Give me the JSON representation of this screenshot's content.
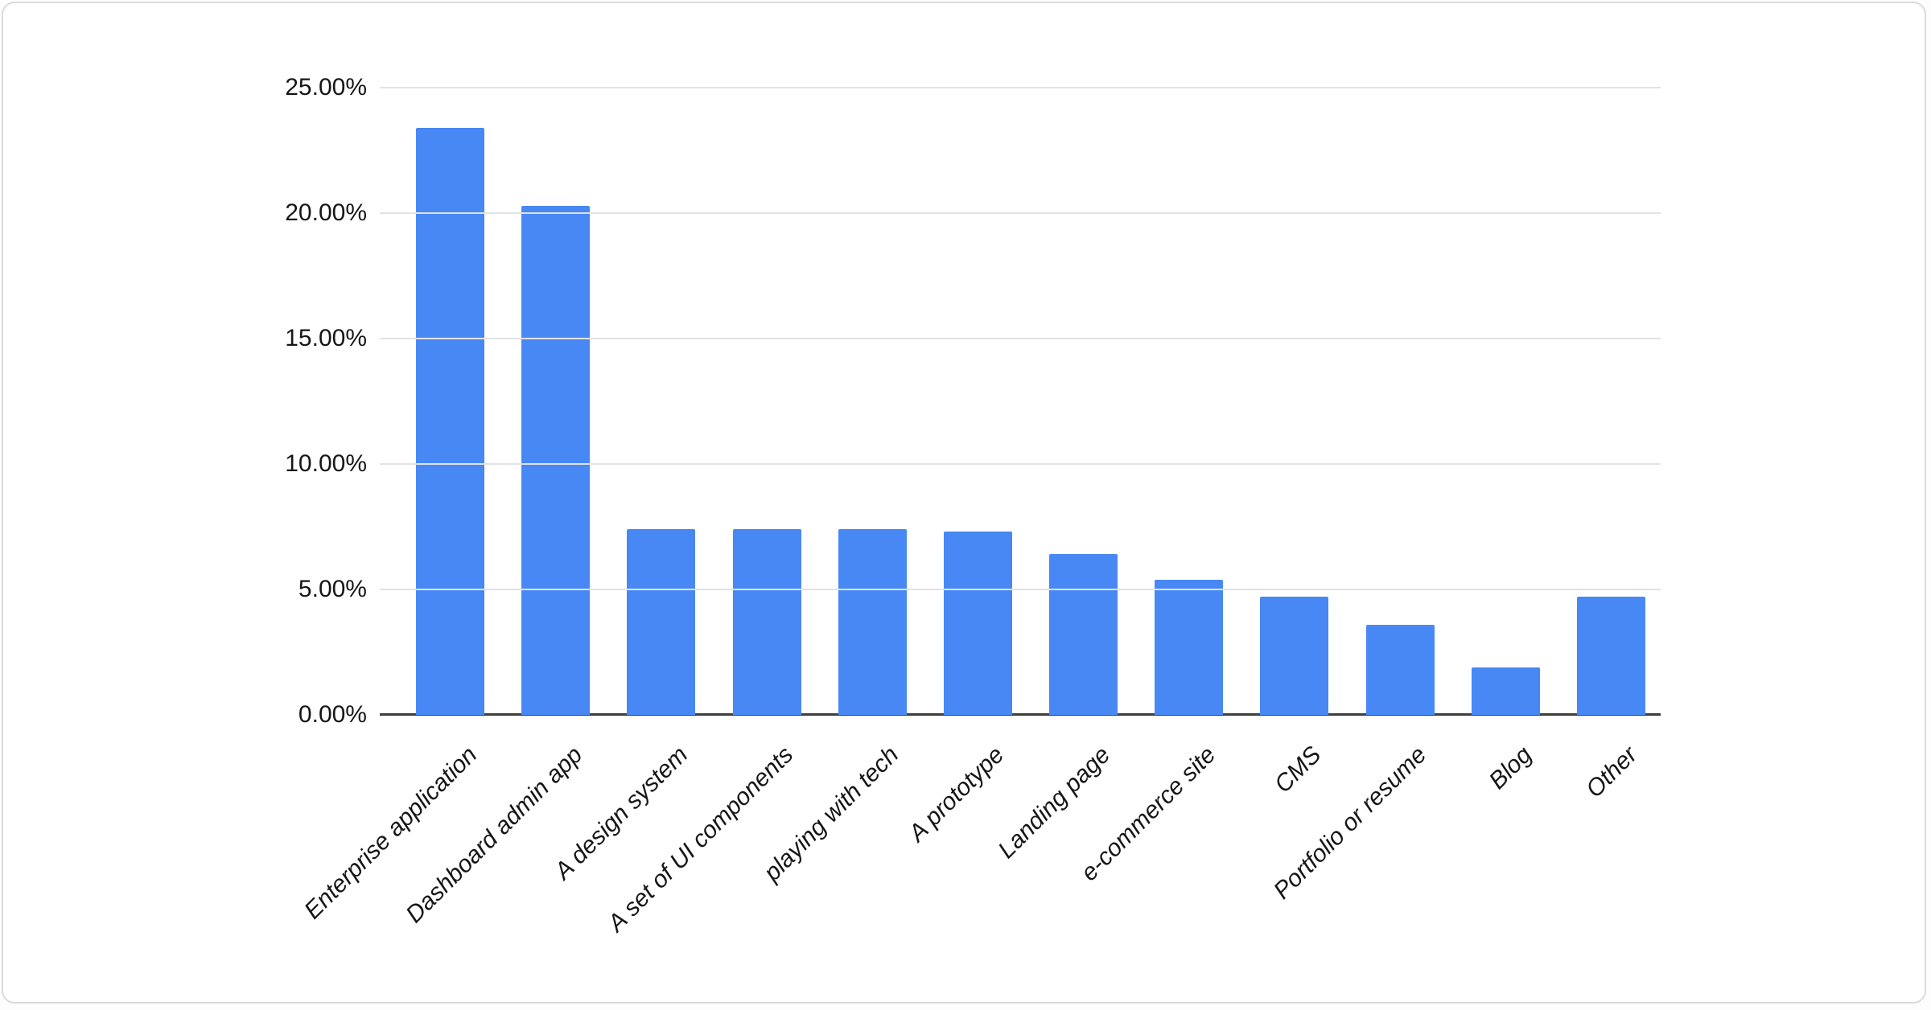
{
  "chart_data": {
    "type": "bar",
    "title": "",
    "xlabel": "",
    "ylabel": "",
    "legend": "none",
    "grid": true,
    "ylim": [
      0,
      25
    ],
    "unit": "%",
    "categories": [
      "Enterprise application",
      "Dashboard admin app",
      "A design system",
      "A set of UI components",
      "playing with tech",
      "A prototype",
      "Landing page",
      "e-commerce site",
      "CMS",
      "Portfolio or resume",
      "Blog",
      "Other"
    ],
    "values": [
      23.4,
      20.3,
      7.4,
      7.4,
      7.4,
      7.3,
      6.4,
      5.4,
      4.7,
      3.6,
      1.9,
      4.7
    ],
    "y_ticks": [
      0,
      5,
      10,
      15,
      20,
      25
    ],
    "y_tick_labels": [
      "0.00%",
      "5.00%",
      "10.00%",
      "15.00%",
      "20.00%",
      "25.00%"
    ],
    "colors": {
      "bar": "#4788f4",
      "gridline": "#e2e2e2",
      "axis": "#3d3d3d",
      "label": "#161616",
      "card_border": "#d9dbde",
      "background": "#ffffff"
    }
  }
}
